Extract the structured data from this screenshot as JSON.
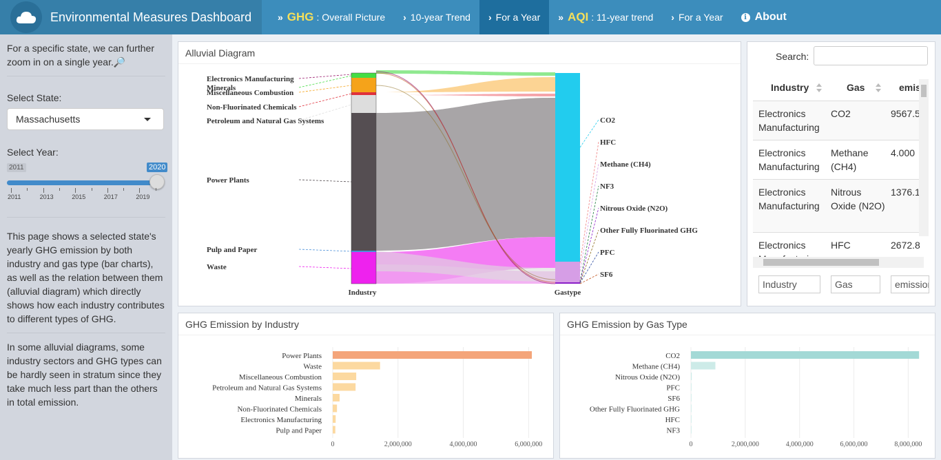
{
  "header": {
    "brand": "Environmental Measures Dashboard",
    "nav": [
      {
        "prefix": "GHG",
        "label": ": Overall Picture",
        "active": false
      },
      {
        "prefix": "",
        "label": "10-year Trend",
        "active": false
      },
      {
        "prefix": "",
        "label": "For a Year",
        "active": true
      },
      {
        "prefix": "AQI",
        "label": ": 11-year trend",
        "active": false
      },
      {
        "prefix": "",
        "label": "For a Year",
        "active": false
      },
      {
        "prefix": "",
        "label": "About",
        "active": false
      }
    ]
  },
  "sidebar": {
    "intro": "For a specific state, we can further zoom in on a single year.🔎",
    "state_label": "Select State:",
    "state_value": "Massachusetts",
    "year_label": "Select Year:",
    "year_min": "2011",
    "year_max": "2020",
    "year_ticks": [
      "2011",
      "2013",
      "2015",
      "2017",
      "2019"
    ],
    "desc1": "This page shows a selected state's yearly GHG emission by both industry and gas type (bar charts), as well as the relation between them (alluvial diagram) which directly shows how each industry contributes to different types of GHG.",
    "desc2": "In some alluvial diagrams, some industry sectors and GHG types can be hardly seen in stratum since they take much less part than the others in total emission."
  },
  "alluvial": {
    "title": "Alluvial Diagram",
    "left_axis": "Industry",
    "right_axis": "Gastype",
    "industries": [
      {
        "name": "Electronics Manufacturing",
        "color": "#9b1c6e"
      },
      {
        "name": "Minerals",
        "color": "#44dd44"
      },
      {
        "name": "Miscellaneous Combustion",
        "color": "#f5a31a"
      },
      {
        "name": "Non-Fluorinated Chemicals",
        "color": "#e0313b"
      },
      {
        "name": "Petroleum and Natural Gas Systems",
        "color": "#dddddd"
      },
      {
        "name": "Power Plants",
        "color": "#554e52"
      },
      {
        "name": "Pulp and Paper",
        "color": "#4a90d9"
      },
      {
        "name": "Waste",
        "color": "#ee22ee"
      }
    ],
    "gases": [
      {
        "name": "CO2",
        "color": "#22ccee"
      },
      {
        "name": "HFC",
        "color": "#f08080"
      },
      {
        "name": "Methane (CH4)",
        "color": "#d69ee6"
      },
      {
        "name": "NF3",
        "color": "#1a7a3a"
      },
      {
        "name": "Nitrous Oxide (N2O)",
        "color": "#8a1ec8"
      },
      {
        "name": "Other Fully Fluorinated GHG",
        "color": "#8a6a1a"
      },
      {
        "name": "PFC",
        "color": "#2a4aa0"
      },
      {
        "name": "SF6",
        "color": "#c0501a"
      }
    ]
  },
  "table": {
    "search_label": "Search:",
    "columns": [
      "Industry",
      "Gas",
      "emission"
    ],
    "rows": [
      {
        "industry": "Electronics Manufacturing",
        "gas": "CO2",
        "emission": "9567.5"
      },
      {
        "industry": "Electronics Manufacturing",
        "gas": "Methane (CH4)",
        "emission": "4.000"
      },
      {
        "industry": "Electronics Manufacturing",
        "gas": "Nitrous Oxide (N2O)",
        "emission": "1376.1"
      },
      {
        "industry": "Electronics Manufacturing",
        "gas": "HFC",
        "emission": "2672.8"
      }
    ],
    "filters": [
      "Industry",
      "Gas",
      "emission"
    ]
  },
  "chart_data": [
    {
      "type": "bar",
      "title": "GHG Emission by Industry",
      "orientation": "horizontal",
      "categories": [
        "Power Plants",
        "Waste",
        "Miscellaneous Combustion",
        "Petroleum and Natural Gas Systems",
        "Minerals",
        "Non-Fluorinated Chemicals",
        "Electronics Manufacturing",
        "Pulp and Paper"
      ],
      "values": [
        6100000,
        1450000,
        720000,
        700000,
        210000,
        130000,
        90000,
        80000
      ],
      "xlim": [
        0,
        6500000
      ],
      "xticks": [
        "0",
        "2,000,000",
        "4,000,000",
        "6,000,000"
      ],
      "xtick_values": [
        0,
        2000000,
        4000000,
        6000000
      ],
      "colors": {
        "max": "#f4a57a",
        "other": "#fcd9a0"
      }
    },
    {
      "type": "bar",
      "title": "GHG Emission by Gas Type",
      "orientation": "horizontal",
      "categories": [
        "CO2",
        "Methane (CH4)",
        "Nitrous Oxide (N2O)",
        "PFC",
        "SF6",
        "Other Fully Fluorinated GHG",
        "HFC",
        "NF3"
      ],
      "values": [
        8400000,
        900000,
        30000,
        15000,
        8000,
        3000,
        2000,
        500
      ],
      "xlim": [
        0,
        8700000
      ],
      "xticks": [
        "0",
        "2,000,000",
        "4,000,000",
        "6,000,000",
        "8,000,000"
      ],
      "xtick_values": [
        0,
        2000000,
        4000000,
        6000000,
        8000000
      ],
      "colors": {
        "max": "#a3d9d6",
        "other": "#cdebe8"
      }
    }
  ]
}
